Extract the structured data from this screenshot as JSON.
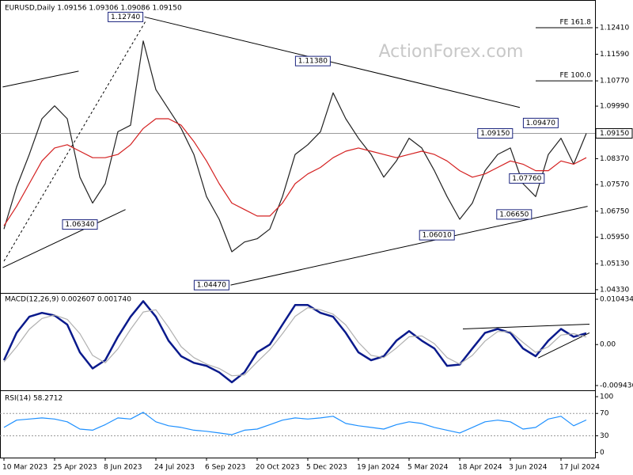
{
  "chart_data": [
    {
      "type": "line",
      "title": "EURUSD,Daily 1.09156 1.09306 1.09086 1.09150",
      "watermark": "ActionForex.com",
      "categories": [
        "10 Mar 2023",
        null,
        null,
        null,
        "25 Apr 2023",
        null,
        null,
        null,
        "8 Jun 2023",
        null,
        null,
        null,
        "24 Jul 2023",
        null,
        null,
        null,
        "6 Sep 2023",
        null,
        null,
        null,
        "20 Oct 2023",
        null,
        null,
        null,
        "5 Dec 2023",
        null,
        null,
        null,
        "19 Jan 2024",
        null,
        null,
        null,
        "5 Mar 2024",
        null,
        null,
        null,
        "18 Apr 2024",
        null,
        null,
        null,
        "3 Jun 2024",
        null,
        null,
        null,
        "17 Jul 2024",
        null,
        null
      ],
      "series": [
        {
          "name": "Close",
          "color": "#222222",
          "values": [
            1.062,
            1.075,
            1.085,
            1.096,
            1.1,
            1.096,
            1.078,
            1.07,
            1.076,
            1.092,
            1.094,
            1.12,
            1.105,
            1.099,
            1.093,
            1.085,
            1.072,
            1.065,
            1.055,
            1.058,
            1.059,
            1.062,
            1.072,
            1.085,
            1.088,
            1.092,
            1.104,
            1.096,
            1.09,
            1.085,
            1.078,
            1.083,
            1.09,
            1.087,
            1.08,
            1.072,
            1.065,
            1.07,
            1.08,
            1.085,
            1.087,
            1.076,
            1.072,
            1.085,
            1.09,
            1.082,
            1.0915
          ]
        },
        {
          "name": "MA",
          "color": "#d42020",
          "values": [
            1.063,
            1.069,
            1.076,
            1.083,
            1.087,
            1.088,
            1.086,
            1.084,
            1.084,
            1.085,
            1.088,
            1.093,
            1.096,
            1.096,
            1.094,
            1.089,
            1.083,
            1.076,
            1.07,
            1.068,
            1.066,
            1.066,
            1.07,
            1.076,
            1.079,
            1.081,
            1.084,
            1.086,
            1.087,
            1.086,
            1.085,
            1.084,
            1.085,
            1.086,
            1.085,
            1.083,
            1.08,
            1.078,
            1.079,
            1.081,
            1.083,
            1.082,
            1.08,
            1.08,
            1.083,
            1.082,
            1.084
          ]
        }
      ],
      "ylim": [
        1.0423,
        1.1319
      ],
      "yticks": [
        {
          "value": 1.1241,
          "label": "1.12410"
        },
        {
          "value": 1.1159,
          "label": "1.11590"
        },
        {
          "value": 1.1077,
          "label": "1.10770"
        },
        {
          "value": 1.0999,
          "label": "1.09990"
        },
        {
          "value": 1.0837,
          "label": "1.08370"
        },
        {
          "value": 1.0757,
          "label": "1.07570"
        },
        {
          "value": 1.0675,
          "label": "1.06750"
        },
        {
          "value": 1.0595,
          "label": "1.05950"
        },
        {
          "value": 1.0513,
          "label": "1.05130"
        },
        {
          "value": 1.0433,
          "label": "1.04330"
        }
      ],
      "last_price": {
        "value": 1.0915,
        "label": "1.09150"
      },
      "annotations": [
        {
          "index": 11.1,
          "value": 1.1274,
          "label": "1.12740"
        },
        {
          "index": 25.9,
          "value": 1.1138,
          "label": "1.11380"
        },
        {
          "index": 7.5,
          "value": 1.0634,
          "label": "1.06340"
        },
        {
          "index": 17.9,
          "value": 1.0447,
          "label": "1.04470"
        },
        {
          "index": 35.7,
          "value": 1.0601,
          "label": "1.06010"
        },
        {
          "index": 41.8,
          "value": 1.0665,
          "label": "1.06650"
        },
        {
          "index": 42.8,
          "value": 1.0776,
          "label": "1.07760"
        },
        {
          "index": 43.9,
          "value": 1.0947,
          "label": "1.09470"
        },
        {
          "index": 40.3,
          "value": 1.0915,
          "label": "1.09150"
        }
      ],
      "levels": [
        {
          "name": "FE 161.8",
          "value": 1.1241,
          "x": [
            42,
            46.5
          ]
        },
        {
          "name": "FE 100.0",
          "value": 1.1077,
          "x": [
            42,
            46.5
          ]
        }
      ],
      "trendlines": [
        {
          "x": [
            11.1,
            40.75
          ],
          "y": [
            1.1274,
            1.0995
          ],
          "dashed": false
        },
        {
          "x": [
            17.9,
            46.1
          ],
          "y": [
            1.0447,
            1.069
          ],
          "dashed": false
        },
        {
          "x": [
            -0.1,
            5.9
          ],
          "y": [
            1.1058,
            1.1107
          ],
          "dashed": false
        },
        {
          "x": [
            -0.1,
            9.6
          ],
          "y": [
            1.0501,
            1.068
          ],
          "dashed": false
        },
        {
          "x": [
            0,
            11.25
          ],
          "y": [
            1.0521,
            1.1265
          ],
          "dashed": true
        }
      ]
    },
    {
      "type": "line",
      "title": "MACD(12,26,9) 0.002607 0.001740",
      "series": [
        {
          "name": "MACD",
          "color": "#0a1a8c",
          "values": [
            -0.0036,
            0.0027,
            0.0064,
            0.0073,
            0.0067,
            0.0046,
            -0.0018,
            -0.0055,
            -0.0036,
            0.0018,
            0.0064,
            0.01,
            0.0064,
            0.0009,
            -0.0027,
            -0.0042,
            -0.0049,
            -0.0064,
            -0.0087,
            -0.0064,
            -0.0018,
            0,
            0.0046,
            0.0091,
            0.0091,
            0.0073,
            0.0064,
            0.0027,
            -0.0018,
            -0.0036,
            -0.0027,
            0.0009,
            0.0031,
            0.0009,
            -0.0009,
            -0.0049,
            -0.0046,
            -0.0009,
            0.0027,
            0.0036,
            0.0027,
            -0.0009,
            -0.0027,
            0.0009,
            0.0036,
            0.0018,
            0.002607
          ]
        },
        {
          "name": "Signal",
          "color": "#b0b0b0",
          "values": [
            -0.004,
            -0.0005,
            0.0035,
            0.006,
            0.0068,
            0.0058,
            0.0025,
            -0.0025,
            -0.0042,
            -0.001,
            0.0035,
            0.0075,
            0.008,
            0.004,
            -0.0005,
            -0.003,
            -0.0045,
            -0.0055,
            -0.0072,
            -0.007,
            -0.004,
            -0.0012,
            0.0025,
            0.0065,
            0.0085,
            0.008,
            0.007,
            0.0045,
            0.0005,
            -0.0025,
            -0.003,
            -0.0008,
            0.0018,
            0.002,
            0.0002,
            -0.003,
            -0.0045,
            -0.0025,
            0.0008,
            0.003,
            0.003,
            0.0005,
            -0.0018,
            -0.0005,
            0.0022,
            0.0025,
            0.00174
          ]
        }
      ],
      "ylim": [
        -0.01035,
        0.01171
      ],
      "yticks": [
        0.010434,
        {
          "value": 0,
          "label": "0.00"
        },
        -0.009436
      ],
      "trendlines": [
        {
          "x": [
            36.25,
            46.25
          ],
          "y": [
            0.0036,
            0.0047
          ],
          "dashed": false
        },
        {
          "x": [
            42.2,
            46.25
          ],
          "y": [
            -0.0031,
            0.0027
          ],
          "dashed": false
        }
      ]
    },
    {
      "type": "line",
      "title": "RSI(14) 58.2712",
      "series": [
        {
          "name": "RSI",
          "color": "#1e90ff",
          "values": [
            45,
            58,
            60,
            62,
            60,
            55,
            42,
            40,
            50,
            62,
            60,
            72,
            55,
            48,
            45,
            40,
            38,
            35,
            32,
            40,
            42,
            50,
            58,
            62,
            60,
            62,
            65,
            52,
            48,
            45,
            42,
            50,
            55,
            52,
            45,
            40,
            35,
            45,
            55,
            58,
            55,
            42,
            45,
            60,
            65,
            48,
            58.2712
          ]
        }
      ],
      "ylim": [
        -9,
        110
      ],
      "yticks": [
        100,
        70,
        30,
        0
      ],
      "levels": [
        {
          "value": 70
        },
        {
          "value": 30
        }
      ]
    }
  ]
}
